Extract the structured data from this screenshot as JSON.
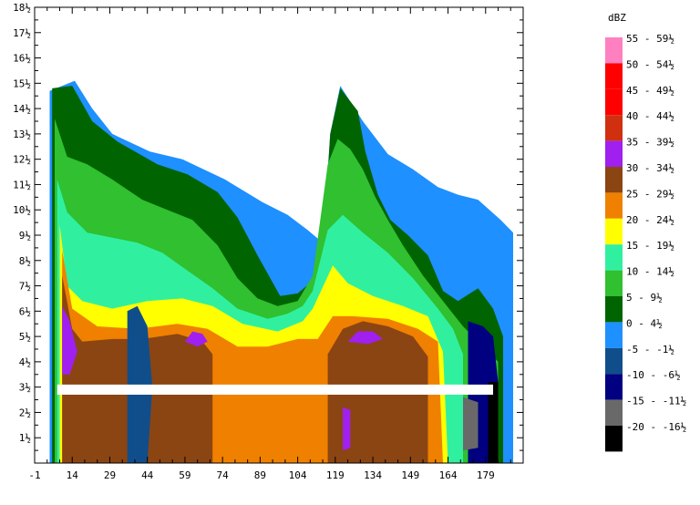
{
  "chart_data": {
    "type": "heatmap",
    "title": "",
    "xlabel": "",
    "ylabel": "",
    "xlim": [
      -1,
      194
    ],
    "ylim": [
      0,
      18
    ],
    "x_ticks": [
      "-1",
      "14",
      "29",
      "44",
      "59",
      "74",
      "89",
      "104",
      "119",
      "134",
      "149",
      "164",
      "179"
    ],
    "x_tick_values": [
      -1,
      14,
      29,
      44,
      59,
      74,
      89,
      104,
      119,
      134,
      149,
      164,
      179
    ],
    "y_ticks": [
      "1½",
      "2½",
      "3½",
      "4½",
      "5½",
      "6½",
      "7½",
      "8½",
      "9½",
      "10½",
      "11½",
      "12½",
      "13½",
      "14½",
      "15½",
      "16½",
      "17½",
      "18½"
    ],
    "y_tick_values": [
      1,
      2,
      3,
      4,
      5,
      6,
      7,
      8,
      9,
      10,
      11,
      12,
      13,
      14,
      15,
      16,
      17,
      18
    ],
    "legend_title": "dBZ",
    "legend": [
      {
        "label": "55 - 59½",
        "color": "#ff80c0"
      },
      {
        "label": "50 - 54½",
        "color": "#ff0000"
      },
      {
        "label": "45 - 49½",
        "color": "#ff0000"
      },
      {
        "label": "40 - 44½",
        "color": "#d03010"
      },
      {
        "label": "35 - 39½",
        "color": "#a020f0"
      },
      {
        "label": "30 - 34½",
        "color": "#8b4513"
      },
      {
        "label": "25 - 29½",
        "color": "#f08000"
      },
      {
        "label": "20 - 24½",
        "color": "#ffff00"
      },
      {
        "label": "15 - 19½",
        "color": "#30f0a0"
      },
      {
        "label": "10 - 14½",
        "color": "#30c030"
      },
      {
        "label": "5 - 9½",
        "color": "#006400"
      },
      {
        "label": "0 - 4½",
        "color": "#1e90ff"
      },
      {
        "label": "-5 - -1½",
        "color": "#104e8b"
      },
      {
        "label": "-10 - -6½",
        "color": "#000080"
      },
      {
        "label": "-15 - -11½",
        "color": "#696969"
      },
      {
        "label": "-20 - -16½",
        "color": "#000000"
      }
    ],
    "layers": [
      {
        "name": "0 - 4½",
        "color": "#1e90ff",
        "points": [
          [
            5,
            0
          ],
          [
            5,
            14.7
          ],
          [
            15,
            15.1
          ],
          [
            22,
            14
          ],
          [
            30,
            13
          ],
          [
            45,
            12.3
          ],
          [
            58,
            12
          ],
          [
            75,
            11.2
          ],
          [
            90,
            10.3
          ],
          [
            100,
            9.8
          ],
          [
            108,
            9.2
          ],
          [
            114,
            8.7
          ],
          [
            117,
            13
          ],
          [
            121,
            14.9
          ],
          [
            130,
            13.5
          ],
          [
            140,
            12.2
          ],
          [
            150,
            11.6
          ],
          [
            160,
            10.9
          ],
          [
            168,
            10.6
          ],
          [
            176,
            10.4
          ],
          [
            185,
            9.6
          ],
          [
            190,
            9.1
          ],
          [
            190,
            0
          ]
        ]
      },
      {
        "name": "5 - 9½",
        "color": "#006400",
        "points": [
          [
            6,
            0
          ],
          [
            6,
            14.8
          ],
          [
            14,
            14.9
          ],
          [
            22,
            13.5
          ],
          [
            32,
            12.7
          ],
          [
            48,
            11.8
          ],
          [
            60,
            11.4
          ],
          [
            72,
            10.7
          ],
          [
            80,
            9.7
          ],
          [
            88,
            8.2
          ],
          [
            97,
            6.6
          ],
          [
            104,
            6.7
          ],
          [
            110,
            7.2
          ],
          [
            114,
            8.2
          ],
          [
            117,
            13
          ],
          [
            121,
            14.8
          ],
          [
            128,
            13.9
          ],
          [
            131,
            12.3
          ],
          [
            136,
            10.6
          ],
          [
            141,
            9.6
          ],
          [
            148,
            9
          ],
          [
            156,
            8.2
          ],
          [
            162,
            6.8
          ],
          [
            168,
            6.4
          ],
          [
            176,
            6.9
          ],
          [
            182,
            6.1
          ],
          [
            186,
            5
          ],
          [
            186,
            0
          ]
        ]
      },
      {
        "name": "10 - 14½",
        "color": "#30c030",
        "points": [
          [
            7,
            0
          ],
          [
            7,
            13.6
          ],
          [
            12,
            12.1
          ],
          [
            20,
            11.8
          ],
          [
            30,
            11.2
          ],
          [
            42,
            10.4
          ],
          [
            52,
            10
          ],
          [
            62,
            9.6
          ],
          [
            72,
            8.6
          ],
          [
            80,
            7.3
          ],
          [
            88,
            6.5
          ],
          [
            96,
            6.2
          ],
          [
            104,
            6.4
          ],
          [
            110,
            7.4
          ],
          [
            116,
            11.8
          ],
          [
            120,
            12.8
          ],
          [
            125,
            12.4
          ],
          [
            130,
            11.6
          ],
          [
            135,
            10.5
          ],
          [
            140,
            9.6
          ],
          [
            146,
            8.6
          ],
          [
            154,
            7.4
          ],
          [
            162,
            6.4
          ],
          [
            170,
            5.4
          ],
          [
            180,
            4.4
          ],
          [
            184,
            4
          ],
          [
            184,
            0
          ]
        ]
      },
      {
        "name": "15 - 19½",
        "color": "#30f0a0",
        "points": [
          [
            8,
            0
          ],
          [
            8,
            11.2
          ],
          [
            12,
            9.9
          ],
          [
            20,
            9.1
          ],
          [
            30,
            8.9
          ],
          [
            40,
            8.7
          ],
          [
            50,
            8.3
          ],
          [
            60,
            7.6
          ],
          [
            70,
            6.9
          ],
          [
            80,
            6.1
          ],
          [
            92,
            5.7
          ],
          [
            100,
            5.9
          ],
          [
            106,
            6.2
          ],
          [
            110,
            6.8
          ],
          [
            116,
            9.2
          ],
          [
            122,
            9.8
          ],
          [
            130,
            9.1
          ],
          [
            140,
            8.3
          ],
          [
            150,
            7.3
          ],
          [
            160,
            6.1
          ],
          [
            166,
            5.3
          ],
          [
            170,
            4.3
          ],
          [
            170,
            0
          ]
        ]
      },
      {
        "name": "20 - 24½",
        "color": "#ffff00",
        "points": [
          [
            9,
            0
          ],
          [
            9,
            9.4
          ],
          [
            12,
            7
          ],
          [
            18,
            6.4
          ],
          [
            30,
            6.1
          ],
          [
            44,
            6.4
          ],
          [
            58,
            6.5
          ],
          [
            70,
            6.2
          ],
          [
            82,
            5.5
          ],
          [
            96,
            5.2
          ],
          [
            106,
            5.6
          ],
          [
            110,
            6.1
          ],
          [
            118,
            7.8
          ],
          [
            124,
            7.1
          ],
          [
            134,
            6.6
          ],
          [
            146,
            6.2
          ],
          [
            156,
            5.8
          ],
          [
            162,
            4.4
          ],
          [
            164,
            0
          ]
        ]
      },
      {
        "name": "25 - 29½",
        "color": "#f08000",
        "points": [
          [
            10,
            0
          ],
          [
            10,
            8.4
          ],
          [
            14,
            6.1
          ],
          [
            24,
            5.4
          ],
          [
            40,
            5.3
          ],
          [
            56,
            5.5
          ],
          [
            68,
            5.3
          ],
          [
            80,
            4.6
          ],
          [
            92,
            4.6
          ],
          [
            104,
            4.9
          ],
          [
            112,
            4.9
          ],
          [
            118,
            5.8
          ],
          [
            126,
            5.8
          ],
          [
            140,
            5.7
          ],
          [
            152,
            5.3
          ],
          [
            160,
            4.8
          ],
          [
            162,
            0
          ]
        ]
      },
      {
        "name": "30 - 34½",
        "color": "#8b4513",
        "points": [
          [
            10,
            0
          ],
          [
            10,
            7.4
          ],
          [
            14,
            5.3
          ],
          [
            18,
            4.8
          ],
          [
            30,
            4.9
          ],
          [
            42,
            4.9
          ],
          [
            56,
            5.1
          ],
          [
            66,
            4.8
          ],
          [
            70,
            4.3
          ],
          [
            70,
            0
          ]
        ]
      },
      {
        "name": "30 - 34½",
        "color": "#8b4513",
        "points": [
          [
            116,
            0
          ],
          [
            116,
            4.3
          ],
          [
            122,
            5.3
          ],
          [
            130,
            5.6
          ],
          [
            140,
            5.4
          ],
          [
            150,
            5
          ],
          [
            156,
            4.2
          ],
          [
            156,
            0
          ]
        ]
      },
      {
        "name": "35 - 39½",
        "color": "#a020f0",
        "points": [
          [
            10,
            3.5
          ],
          [
            10,
            6.2
          ],
          [
            13,
            5.6
          ],
          [
            16,
            4.4
          ],
          [
            13,
            3.5
          ]
        ]
      },
      {
        "name": "35 - 39½",
        "color": "#a020f0",
        "points": [
          [
            59,
            4.8
          ],
          [
            62,
            5.2
          ],
          [
            66,
            5.1
          ],
          [
            68,
            4.8
          ],
          [
            64,
            4.6
          ]
        ]
      },
      {
        "name": "35 - 39½",
        "color": "#a020f0",
        "points": [
          [
            124,
            4.8
          ],
          [
            128,
            5.2
          ],
          [
            134,
            5.2
          ],
          [
            138,
            4.9
          ],
          [
            132,
            4.7
          ]
        ]
      },
      {
        "name": "35 - 39½",
        "color": "#a020f0",
        "points": [
          [
            122,
            0.5
          ],
          [
            122,
            2.2
          ],
          [
            125,
            2.1
          ],
          [
            125,
            0.6
          ]
        ]
      },
      {
        "name": "-5 - -1½",
        "color": "#104e8b",
        "points": [
          [
            36,
            0
          ],
          [
            36,
            6
          ],
          [
            40,
            6.2
          ],
          [
            44,
            5.4
          ],
          [
            46,
            3
          ],
          [
            44,
            0
          ]
        ]
      },
      {
        "name": "-10 - -6½",
        "color": "#000080",
        "points": [
          [
            172,
            0
          ],
          [
            172,
            5.6
          ],
          [
            178,
            5.4
          ],
          [
            182,
            5
          ],
          [
            184,
            3.2
          ],
          [
            180,
            0
          ]
        ]
      },
      {
        "name": "-15 - -11½",
        "color": "#696969",
        "points": [
          [
            170,
            0.5
          ],
          [
            170,
            2.6
          ],
          [
            176,
            2.4
          ],
          [
            176,
            0.6
          ]
        ]
      },
      {
        "name": "-20 - -16½",
        "color": "#000000",
        "points": [
          [
            180,
            0
          ],
          [
            180,
            3.2
          ],
          [
            184,
            3.2
          ],
          [
            184,
            0
          ]
        ]
      }
    ],
    "gap_band": {
      "y0": 2.7,
      "y1": 3.1,
      "color": "#ffffff"
    }
  }
}
